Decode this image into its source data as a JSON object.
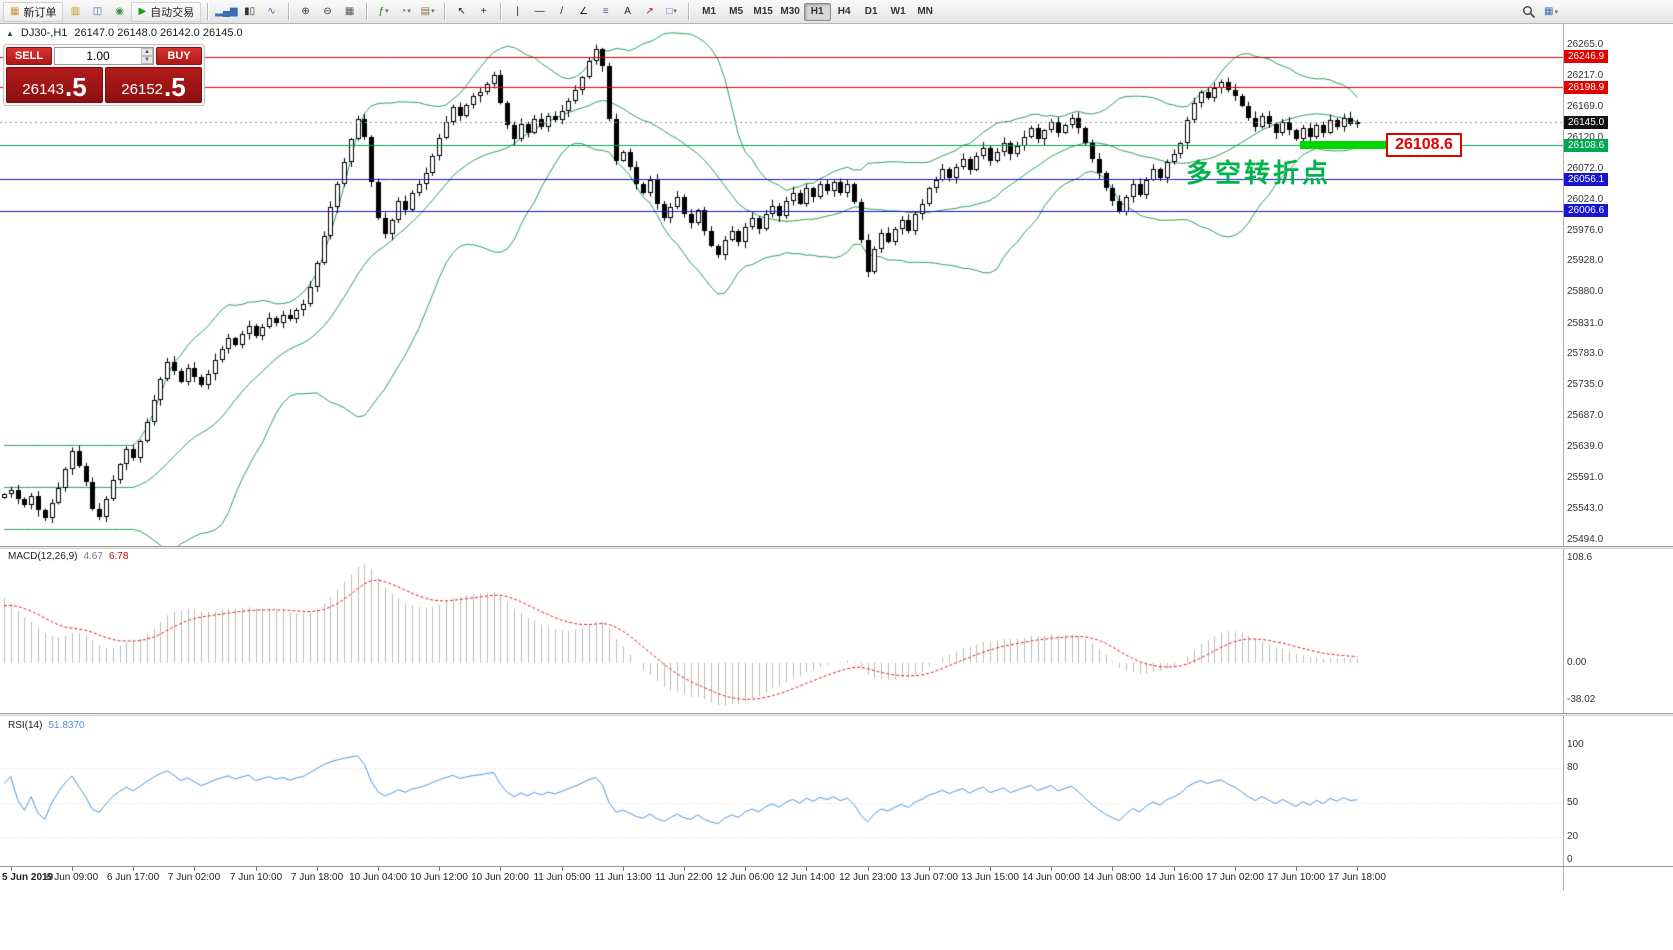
{
  "toolbar": {
    "items": [
      {
        "t": "btn",
        "n": "new-order",
        "g": "▦",
        "c": "#c9972e",
        "label": "新订单"
      },
      {
        "t": "ic",
        "n": "chart-profiles",
        "g": "▥",
        "c": "#c9972e"
      },
      {
        "t": "ic",
        "n": "market-watch",
        "g": "◫",
        "c": "#3a6fb0"
      },
      {
        "t": "ic",
        "n": "navigator",
        "g": "◉",
        "c": "#3f8f3f"
      },
      {
        "t": "btn",
        "n": "auto-trading",
        "g": "▶",
        "c": "#13a113",
        "label": "自动交易"
      },
      {
        "t": "sep"
      },
      {
        "t": "ic",
        "n": "bar-chart",
        "g": "▂▄▆",
        "c": "#3a6fb0"
      },
      {
        "t": "ic",
        "n": "candlestick-chart",
        "g": "▮▯",
        "c": "#333333"
      },
      {
        "t": "ic",
        "n": "line-chart",
        "g": "∿",
        "c": "#3a6fb0"
      },
      {
        "t": "sep"
      },
      {
        "t": "ic",
        "n": "zoom-in",
        "g": "⊕",
        "c": "#333333"
      },
      {
        "t": "ic",
        "n": "zoom-out",
        "g": "⊖",
        "c": "#333333"
      },
      {
        "t": "ic",
        "n": "tile-windows",
        "g": "▦",
        "c": "#555555"
      },
      {
        "t": "sep"
      },
      {
        "t": "dd",
        "n": "indicators",
        "g": "ƒ",
        "c": "#1a7a1a"
      },
      {
        "t": "dd",
        "n": "periods",
        "g": "◔",
        "c": "#3a6fb0"
      },
      {
        "t": "dd",
        "n": "templates",
        "g": "▤",
        "c": "#8a6d3b"
      },
      {
        "t": "sep"
      },
      {
        "t": "ic",
        "n": "cursor",
        "g": "↖",
        "c": "#222222"
      },
      {
        "t": "ic",
        "n": "crosshair",
        "g": "+",
        "c": "#222222"
      },
      {
        "t": "sep"
      },
      {
        "t": "ic",
        "n": "vertical-line",
        "g": "|",
        "c": "#222222"
      },
      {
        "t": "ic",
        "n": "horizontal-line",
        "g": "—",
        "c": "#222222"
      },
      {
        "t": "ic",
        "n": "trendline",
        "g": "/",
        "c": "#222222"
      },
      {
        "t": "ic",
        "n": "equidistant-channel",
        "g": "∠",
        "c": "#222222"
      },
      {
        "t": "ic",
        "n": "fibonacci",
        "g": "≡",
        "c": "#7a4aa0"
      },
      {
        "t": "ic",
        "n": "text",
        "g": "A",
        "c": "#222222"
      },
      {
        "t": "ic",
        "n": "arrows",
        "g": "↗",
        "c": "#b22222"
      },
      {
        "t": "dd",
        "n": "shapes",
        "g": "□",
        "c": "#3a6fb0"
      },
      {
        "t": "sep"
      }
    ],
    "timeframes": [
      "M1",
      "M5",
      "M15",
      "M30",
      "H1",
      "H4",
      "D1",
      "W1",
      "MN"
    ],
    "active_timeframe": "H1",
    "right_icons": [
      "search-icon",
      "window-layout-icon"
    ]
  },
  "chart": {
    "collapse_arrow": "▲",
    "symbol_period": "DJ30-,H1",
    "ohlc_text": "26147.0 26148.0 26142.0 26145.0"
  },
  "trade_panel": {
    "sell_label": "SELL",
    "buy_label": "BUY",
    "volume": "1.00",
    "spin_up": "▲",
    "spin_down": "▼",
    "sell_price_main": "26143",
    "sell_price_frac": ".5",
    "buy_price_main": "26152",
    "buy_price_frac": ".5"
  },
  "annotations": {
    "turning_point": "多空转折点",
    "price_flag": "26108.6"
  },
  "axis": {
    "y_ticks": [
      "26265.0",
      "26217.0",
      "26169.0",
      "26120.0",
      "26072.0",
      "26024.0",
      "25976.0",
      "25928.0",
      "25880.0",
      "25831.0",
      "25783.0",
      "25735.0",
      "25687.0",
      "25639.0",
      "25591.0",
      "25543.0",
      "25494.0"
    ],
    "price_flags": [
      {
        "text": "26246.9",
        "price": 26246.9,
        "color": "#e00000"
      },
      {
        "text": "26198.9",
        "price": 26198.9,
        "color": "#e00000"
      },
      {
        "text": "26145.0",
        "price": 26145.0,
        "color": "#111111"
      },
      {
        "text": "26108.6",
        "price": 26108.6,
        "color": "#00a650"
      },
      {
        "text": "26056.1",
        "price": 26056.1,
        "color": "#1515cf"
      },
      {
        "text": "26006.6",
        "price": 26006.6,
        "color": "#1515cf"
      }
    ]
  },
  "macd": {
    "label": "MACD(12,26,9)",
    "value_main": "4.67",
    "value_signal": "6.78",
    "ticks": [
      {
        "text": "108.6",
        "v": 108.6
      },
      {
        "text": "0.00",
        "v": 0
      },
      {
        "text": "-38.02",
        "v": -38.02
      }
    ]
  },
  "rsi": {
    "label": "RSI(14)",
    "value": "51.8370",
    "ticks": [
      {
        "text": "100",
        "v": 100
      },
      {
        "text": "80",
        "v": 80
      },
      {
        "text": "50",
        "v": 50
      },
      {
        "text": "20",
        "v": 20
      },
      {
        "text": "0",
        "v": 0
      }
    ],
    "levels": [
      80,
      50,
      20
    ]
  },
  "colors": {
    "bands": "#2e9e5b",
    "macd_hist": "#bdbdbd",
    "macd_signal": "#dd2222",
    "rsi_line": "#4e96e0",
    "hline_red": "#e00000",
    "hline_blue": "#1515cf",
    "hline_green": "#00a650",
    "panel_red": "#a01616",
    "annotation_green": "#00b44a",
    "highlight_green": "#00d800"
  },
  "chart_data": {
    "type": "candlestick",
    "symbol": "DJ30-",
    "period": "H1",
    "first_open": 25560,
    "price_axis_max": 26265,
    "price_axis_min": 25494,
    "current_price": 26145.0,
    "macd_range": [
      118,
      -52
    ],
    "indicators": {
      "bollinger_period": 20,
      "bollinger_dev": 2,
      "macd": [
        12,
        26,
        9
      ],
      "rsi_period": 14
    },
    "hlines": [
      {
        "price": 26246.9,
        "color": "#e00000"
      },
      {
        "price": 26198.9,
        "color": "#e00000"
      },
      {
        "price": 26108.6,
        "color": "#00a650"
      },
      {
        "price": 26056.1,
        "color": "#1515cf"
      },
      {
        "price": 26006.6,
        "color": "#1515cf"
      }
    ],
    "closes": [
      25565,
      25572,
      25558,
      25548,
      25562,
      25540,
      25528,
      25552,
      25575,
      25604,
      25632,
      25610,
      25585,
      25542,
      25530,
      25558,
      25588,
      25612,
      25635,
      25622,
      25648,
      25678,
      25712,
      25745,
      25772,
      25758,
      25740,
      25762,
      25748,
      25735,
      25752,
      25775,
      25792,
      25808,
      25798,
      25815,
      25828,
      25812,
      25825,
      25840,
      25832,
      25845,
      25838,
      25852,
      25862,
      25888,
      25925,
      25968,
      26012,
      26048,
      26082,
      26118,
      26150,
      26122,
      26052,
      25996,
      25970,
      25992,
      26022,
      26008,
      26035,
      26048,
      26065,
      26092,
      26120,
      26145,
      26168,
      26155,
      26172,
      26185,
      26192,
      26205,
      26218,
      26175,
      26140,
      26118,
      26142,
      26128,
      26150,
      26138,
      26155,
      26148,
      26162,
      26178,
      26195,
      26215,
      26240,
      26258,
      26232,
      26150,
      26085,
      26098,
      26075,
      26048,
      26035,
      26055,
      26018,
      25995,
      26012,
      26028,
      26002,
      25988,
      26008,
      25975,
      25952,
      25938,
      25962,
      25975,
      25958,
      25982,
      25995,
      25978,
      26002,
      26015,
      25998,
      26022,
      26035,
      26018,
      26042,
      26028,
      26048,
      26038,
      26052,
      26035,
      26048,
      26020,
      25962,
      25912,
      25948,
      25972,
      25958,
      25978,
      25992,
      25975,
      26002,
      26018,
      26042,
      26055,
      26072,
      26058,
      26075,
      26088,
      26070,
      26092,
      26105,
      26085,
      26098,
      26112,
      26095,
      26108,
      26122,
      26135,
      26118,
      26132,
      26145,
      26128,
      26140,
      26152,
      26135,
      26112,
      26088,
      26065,
      26042,
      26022,
      26005,
      26028,
      26048,
      26032,
      26055,
      26072,
      26058,
      26082,
      26095,
      26112,
      26148,
      26175,
      26192,
      26182,
      26198,
      26208,
      26195,
      26185,
      26170,
      26152,
      26138,
      26155,
      26142,
      26128,
      26145,
      26132,
      26118,
      26135,
      26122,
      26140,
      26128,
      26148,
      26138,
      26152,
      26142,
      26145
    ],
    "time_labels": [
      {
        "t": "5 Jun 2019",
        "b": 1
      },
      {
        "t": "6 Jun 09:00",
        "b": 10
      },
      {
        "t": "6 Jun 17:00",
        "b": 19
      },
      {
        "t": "7 Jun 02:00",
        "b": 28
      },
      {
        "t": "7 Jun 10:00",
        "b": 37
      },
      {
        "t": "7 Jun 18:00",
        "b": 46
      },
      {
        "t": "10 Jun 04:00",
        "b": 55
      },
      {
        "t": "10 Jun 12:00",
        "b": 64
      },
      {
        "t": "10 Jun 20:00",
        "b": 73
      },
      {
        "t": "11 Jun 05:00",
        "b": 82
      },
      {
        "t": "11 Jun 13:00",
        "b": 91
      },
      {
        "t": "11 Jun 22:00",
        "b": 100
      },
      {
        "t": "12 Jun 06:00",
        "b": 109
      },
      {
        "t": "12 Jun 14:00",
        "b": 118
      },
      {
        "t": "12 Jun 23:00",
        "b": 127
      },
      {
        "t": "13 Jun 07:00",
        "b": 136
      },
      {
        "t": "13 Jun 15:00",
        "b": 145
      },
      {
        "t": "14 Jun 00:00",
        "b": 154
      },
      {
        "t": "14 Jun 08:00",
        "b": 163
      },
      {
        "t": "14 Jun 16:00",
        "b": 172
      },
      {
        "t": "17 Jun 02:00",
        "b": 181
      },
      {
        "t": "17 Jun 10:00",
        "b": 190
      },
      {
        "t": "17 Jun 18:00",
        "b": 199
      }
    ]
  }
}
